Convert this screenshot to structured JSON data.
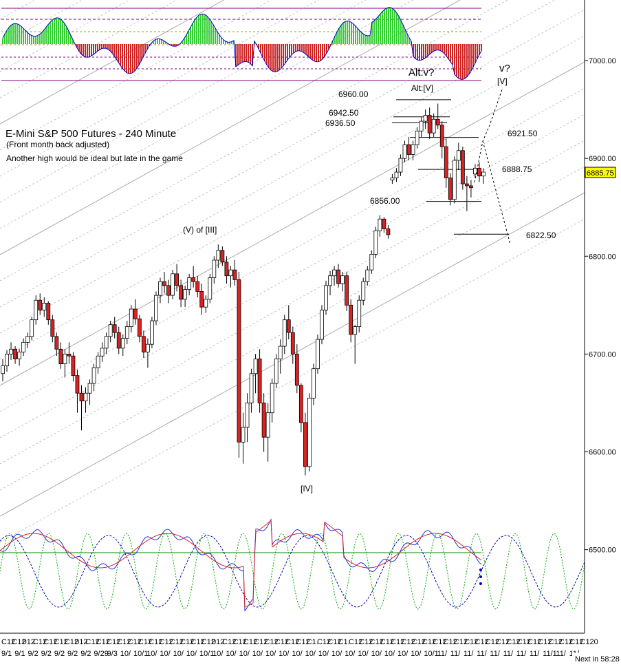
{
  "chart_data": {
    "type": "candlestick",
    "title": "E-Mini S&P 500 Futures - 240 Minute",
    "subtitle": "(Front month back adjusted)",
    "comment": "Another high would be ideal but late in the game",
    "ylim": [
      6460,
      7060
    ],
    "y_ticks": [
      "7000.00",
      "6900.00",
      "6800.00",
      "6700.00",
      "6600.00",
      "6500.00"
    ],
    "last_price": "6885.75",
    "x_tick_labels": [
      "C12",
      "C12",
      "012",
      "C12",
      "C12",
      "C12",
      "C12",
      "012",
      "C12",
      "C12",
      "C12",
      "C12",
      "C12",
      "C12",
      "C12",
      "C12",
      "C12",
      "C12",
      "C12",
      "C12",
      "012",
      "C12",
      "C12",
      "C12",
      "C12",
      "C12",
      "C12",
      "C12",
      "C12",
      "C1.",
      "C12",
      "C12",
      "C1.",
      "C12",
      "C12",
      "C12",
      "C12",
      "C12",
      "C12",
      "C12",
      "C12",
      "C12",
      "C12",
      "C12",
      "C12",
      "C12",
      "C12",
      "C12",
      "C12",
      "C12",
      "C12",
      "C12",
      "C12",
      "C12",
      "C12",
      "C120"
    ],
    "x_date_labels": [
      "9/1",
      "9/1",
      "9/2",
      "9/2",
      "9/2",
      "9/2",
      "9/2",
      "9/29",
      "9/3",
      "10/",
      "10/1",
      "10/",
      "10/",
      "10/",
      "10/",
      "10/1",
      "10/",
      "10/",
      "10/",
      "10/",
      "10/",
      "10/",
      "10/",
      "10/",
      "10/",
      "10/",
      "10/",
      "10/",
      "10/",
      "10/",
      "10/",
      "10/",
      "10/1",
      "11/",
      "11/",
      "11/",
      "11/",
      "11/",
      "11/",
      "11/",
      "11/",
      "11/1",
      "11/",
      "11/"
    ],
    "status_text": "Next in 58:28",
    "price_levels": [
      {
        "label": "6960.00",
        "value": 6960.0
      },
      {
        "label": "6942.50",
        "value": 6942.5
      },
      {
        "label": "6936.50",
        "value": 6936.5
      },
      {
        "label": "6921.50",
        "value": 6921.5
      },
      {
        "label": "6888.75",
        "value": 6888.75
      },
      {
        "label": "6856.00",
        "value": 6856.0
      },
      {
        "label": "6822.50",
        "value": 6822.5
      }
    ],
    "wave_labels": [
      "(V) of [III]",
      "[IV]",
      "Alt:v?",
      "Alt:[V]",
      "v?",
      "[V]"
    ],
    "candles": [
      [
        6680,
        6695,
        6672,
        6688
      ],
      [
        6688,
        6704,
        6682,
        6700
      ],
      [
        6700,
        6712,
        6694,
        6705
      ],
      [
        6705,
        6708,
        6690,
        6695
      ],
      [
        6695,
        6705,
        6688,
        6702
      ],
      [
        6702,
        6716,
        6698,
        6712
      ],
      [
        6712,
        6722,
        6706,
        6718
      ],
      [
        6718,
        6738,
        6714,
        6735
      ],
      [
        6735,
        6760,
        6730,
        6755
      ],
      [
        6755,
        6762,
        6740,
        6745
      ],
      [
        6745,
        6758,
        6738,
        6752
      ],
      [
        6752,
        6754,
        6730,
        6735
      ],
      [
        6735,
        6740,
        6712,
        6718
      ],
      [
        6718,
        6722,
        6698,
        6705
      ],
      [
        6705,
        6712,
        6685,
        6690
      ],
      [
        6690,
        6705,
        6676,
        6700
      ],
      [
        6700,
        6712,
        6690,
        6698
      ],
      [
        6698,
        6702,
        6672,
        6678
      ],
      [
        6678,
        6684,
        6640,
        6660
      ],
      [
        6660,
        6668,
        6622,
        6652
      ],
      [
        6652,
        6666,
        6640,
        6660
      ],
      [
        6660,
        6674,
        6648,
        6670
      ],
      [
        6670,
        6690,
        6662,
        6686
      ],
      [
        6686,
        6702,
        6680,
        6698
      ],
      [
        6698,
        6712,
        6692,
        6706
      ],
      [
        6706,
        6722,
        6700,
        6718
      ],
      [
        6718,
        6734,
        6712,
        6730
      ],
      [
        6730,
        6738,
        6716,
        6722
      ],
      [
        6722,
        6728,
        6700,
        6706
      ],
      [
        6706,
        6720,
        6698,
        6716
      ],
      [
        6716,
        6734,
        6710,
        6728
      ],
      [
        6728,
        6750,
        6722,
        6746
      ],
      [
        6746,
        6756,
        6730,
        6736
      ],
      [
        6736,
        6740,
        6712,
        6718
      ],
      [
        6718,
        6724,
        6696,
        6702
      ],
      [
        6702,
        6716,
        6686,
        6710
      ],
      [
        6710,
        6738,
        6706,
        6734
      ],
      [
        6734,
        6764,
        6730,
        6760
      ],
      [
        6760,
        6778,
        6752,
        6774
      ],
      [
        6774,
        6784,
        6762,
        6770
      ],
      [
        6770,
        6776,
        6752,
        6760
      ],
      [
        6760,
        6786,
        6756,
        6782
      ],
      [
        6782,
        6792,
        6764,
        6770
      ],
      [
        6770,
        6776,
        6748,
        6756
      ],
      [
        6756,
        6770,
        6748,
        6766
      ],
      [
        6766,
        6782,
        6760,
        6778
      ],
      [
        6778,
        6790,
        6768,
        6774
      ],
      [
        6774,
        6780,
        6758,
        6764
      ],
      [
        6764,
        6772,
        6740,
        6748
      ],
      [
        6748,
        6760,
        6742,
        6756
      ],
      [
        6756,
        6782,
        6752,
        6778
      ],
      [
        6778,
        6800,
        6772,
        6796
      ],
      [
        6796,
        6812,
        6788,
        6806
      ],
      [
        6806,
        6810,
        6790,
        6794
      ],
      [
        6794,
        6800,
        6772,
        6780
      ],
      [
        6780,
        6790,
        6768,
        6786
      ],
      [
        6786,
        6796,
        6770,
        6776
      ],
      [
        6776,
        6784,
        6594,
        6610
      ],
      [
        6610,
        6640,
        6588,
        6625
      ],
      [
        6625,
        6660,
        6610,
        6650
      ],
      [
        6650,
        6685,
        6640,
        6680
      ],
      [
        6680,
        6700,
        6660,
        6695
      ],
      [
        6695,
        6705,
        6640,
        6650
      ],
      [
        6650,
        6660,
        6600,
        6615
      ],
      [
        6615,
        6650,
        6590,
        6640
      ],
      [
        6640,
        6675,
        6630,
        6670
      ],
      [
        6670,
        6700,
        6665,
        6695
      ],
      [
        6695,
        6715,
        6680,
        6708
      ],
      [
        6708,
        6740,
        6700,
        6735
      ],
      [
        6735,
        6750,
        6715,
        6722
      ],
      [
        6722,
        6728,
        6690,
        6700
      ],
      [
        6700,
        6710,
        6660,
        6668
      ],
      [
        6668,
        6670,
        6620,
        6630
      ],
      [
        6630,
        6640,
        6576,
        6585
      ],
      [
        6585,
        6660,
        6580,
        6655
      ],
      [
        6655,
        6690,
        6648,
        6685
      ],
      [
        6685,
        6720,
        6680,
        6715
      ],
      [
        6715,
        6750,
        6710,
        6745
      ],
      [
        6745,
        6775,
        6740,
        6770
      ],
      [
        6770,
        6785,
        6760,
        6780
      ],
      [
        6780,
        6790,
        6770,
        6786
      ],
      [
        6786,
        6792,
        6768,
        6772
      ],
      [
        6772,
        6784,
        6764,
        6780
      ],
      [
        6780,
        6784,
        6744,
        6750
      ],
      [
        6750,
        6756,
        6712,
        6720
      ],
      [
        6720,
        6730,
        6690,
        6728
      ],
      [
        6728,
        6760,
        6722,
        6755
      ],
      [
        6755,
        6778,
        6750,
        6774
      ],
      [
        6774,
        6790,
        6770,
        6786
      ],
      [
        6786,
        6806,
        6782,
        6802
      ],
      [
        6802,
        6830,
        6798,
        6826
      ],
      [
        6826,
        6842,
        6820,
        6838
      ],
      [
        6838,
        6840,
        6824,
        6828
      ],
      [
        6828,
        6832,
        6818,
        6822
      ],
      [
        6878,
        6884,
        6874,
        6880
      ],
      [
        6880,
        6890,
        6876,
        6886
      ],
      [
        6886,
        6904,
        6882,
        6900
      ],
      [
        6900,
        6918,
        6896,
        6914
      ],
      [
        6914,
        6922,
        6898,
        6904
      ],
      [
        6904,
        6918,
        6898,
        6914
      ],
      [
        6914,
        6932,
        6910,
        6928
      ],
      [
        6928,
        6942,
        6922,
        6938
      ],
      [
        6938,
        6950,
        6930,
        6944
      ],
      [
        6944,
        6952,
        6920,
        6926
      ],
      [
        6926,
        6946,
        6922,
        6940
      ],
      [
        6940,
        6956,
        6930,
        6934
      ],
      [
        6934,
        6938,
        6900,
        6912
      ],
      [
        6912,
        6920,
        6870,
        6880
      ],
      [
        6880,
        6885,
        6852,
        6858
      ],
      [
        6858,
        6902,
        6854,
        6898
      ],
      [
        6898,
        6916,
        6888,
        6908
      ],
      [
        6908,
        6912,
        6868,
        6874
      ],
      [
        6874,
        6882,
        6846,
        6872
      ],
      [
        6872,
        6878,
        6860,
        6870
      ],
      [
        6884,
        6894,
        6880,
        6890
      ],
      [
        6890,
        6896,
        6876,
        6882
      ],
      [
        6882,
        6890,
        6874,
        6886
      ]
    ]
  }
}
